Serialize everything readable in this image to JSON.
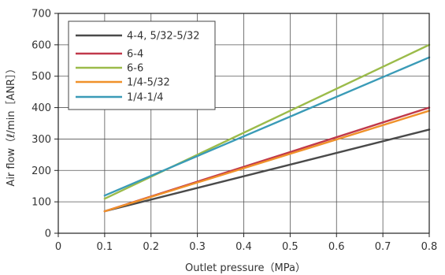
{
  "chart_data": {
    "type": "line",
    "title": "",
    "xlabel": "Outlet pressure（MPa）",
    "ylabel": "Air flow（ℓ/min［ANR］）",
    "xlim": [
      0,
      0.8
    ],
    "ylim": [
      0,
      700
    ],
    "x_ticks": [
      "0",
      "0.1",
      "0.2",
      "0.3",
      "0.4",
      "0.5",
      "0.6",
      "0.7",
      "0.8"
    ],
    "y_ticks": [
      "0",
      "100",
      "200",
      "300",
      "400",
      "500",
      "600",
      "700"
    ],
    "grid": true,
    "legend_position": "top-left",
    "series": [
      {
        "name": "4-4, 5/32-5/32",
        "color": "#4a4a4a",
        "x": [
          0.1,
          0.8
        ],
        "y": [
          70,
          330
        ]
      },
      {
        "name": "6-4",
        "color": "#c0394b",
        "x": [
          0.1,
          0.8
        ],
        "y": [
          70,
          400
        ]
      },
      {
        "name": "6-6",
        "color": "#9bbb4a",
        "x": [
          0.1,
          0.8
        ],
        "y": [
          110,
          600
        ]
      },
      {
        "name": "1/4-5/32",
        "color": "#f0912a",
        "x": [
          0.1,
          0.8
        ],
        "y": [
          70,
          390
        ]
      },
      {
        "name": "1/4-1/4",
        "color": "#3a9bb7",
        "x": [
          0.1,
          0.8
        ],
        "y": [
          120,
          560
        ]
      }
    ]
  }
}
